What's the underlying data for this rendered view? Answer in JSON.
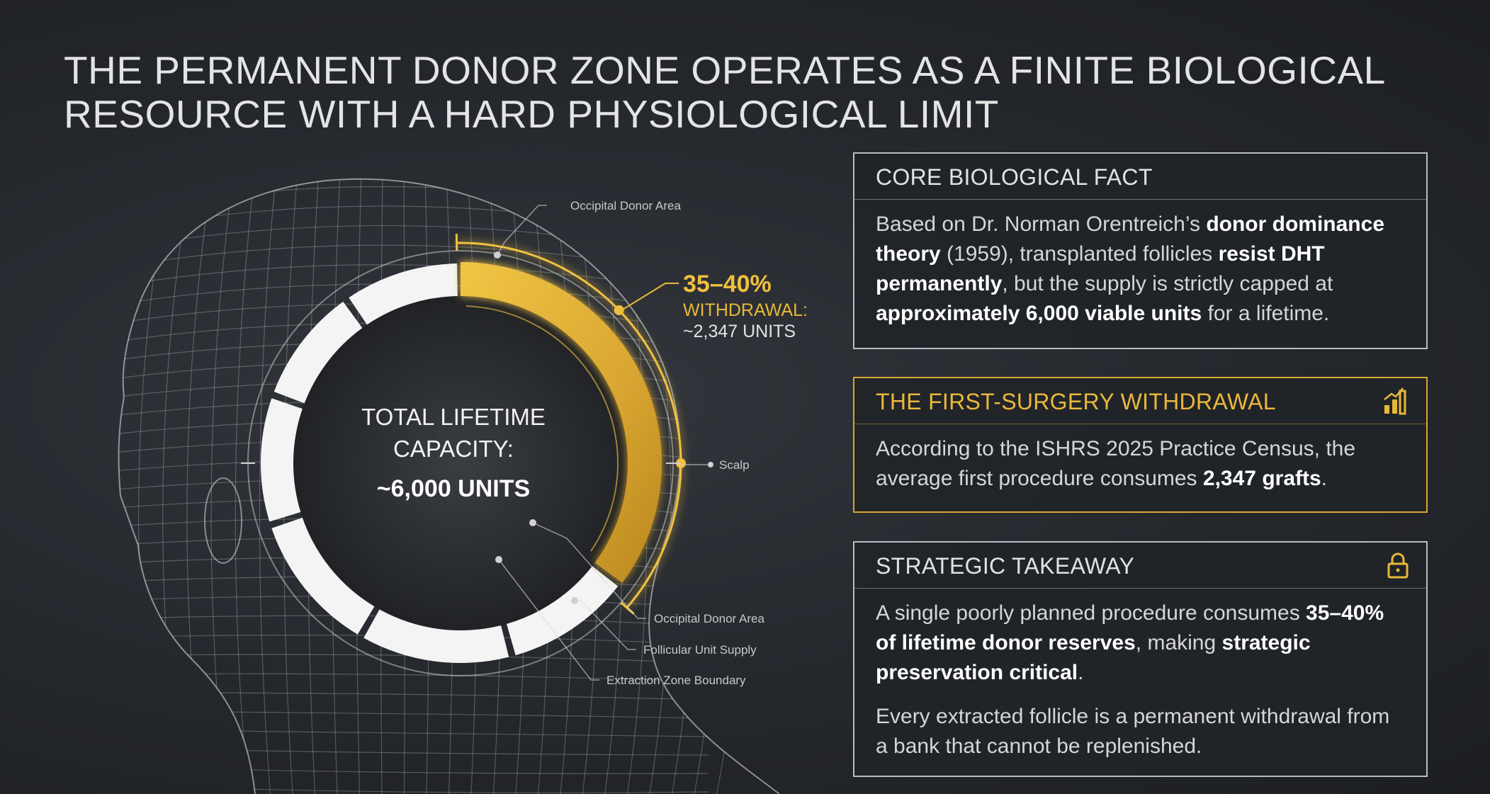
{
  "title": {
    "lines": [
      "THE PERMANENT DONOR ZONE OPERATES AS A FINITE BIOLOGICAL",
      "RESOURCE WITH A HARD PHYSIOLOGICAL LIMIT"
    ]
  },
  "diagram": {
    "center_lines": [
      "TOTAL LIFETIME",
      "CAPACITY:",
      "~6,000 UNITS"
    ],
    "callout": {
      "percent": "35–40%",
      "label": "WITHDRAWAL:",
      "units": "~2,347 UNITS"
    },
    "labels": [
      "Occipital Donor Area",
      "Scalp",
      "Occipital Donor Area",
      "Follicular Unit Supply",
      "Extraction Zone Boundary"
    ]
  },
  "cards": [
    {
      "heading": "CORE BIOLOGICAL FACT",
      "paragraphs": [
        [
          {
            "text": "Based on Dr. Norman Orentreich’s ",
            "bold": false
          },
          {
            "text": "donor dominance theory",
            "bold": true
          },
          {
            "text": " (1959), transplanted follicles ",
            "bold": false
          },
          {
            "text": "resist DHT permanently",
            "bold": true
          },
          {
            "text": ", but the supply is strictly capped at ",
            "bold": false
          },
          {
            "text": "approximately 6,000 viable units",
            "bold": true
          },
          {
            "text": " for a lifetime.",
            "bold": false
          }
        ]
      ]
    },
    {
      "heading": "THE FIRST-SURGERY WITHDRAWAL",
      "paragraphs": [
        [
          {
            "text": "According to the ISHRS 2025 Practice Census, the average first procedure consumes ",
            "bold": false
          },
          {
            "text": "2,347 grafts",
            "bold": true
          },
          {
            "text": ".",
            "bold": false
          }
        ]
      ]
    },
    {
      "heading": "STRATEGIC TAKEAWAY",
      "paragraphs": [
        [
          {
            "text": "A single poorly planned procedure consumes ",
            "bold": false
          },
          {
            "text": "35–40% of lifetime donor reserves",
            "bold": true
          },
          {
            "text": ", making ",
            "bold": false
          },
          {
            "text": "strategic preservation critical",
            "bold": true
          },
          {
            "text": ".",
            "bold": false
          }
        ],
        [
          {
            "text": "Every extracted follicle is a permanent withdrawal from a bank that cannot be replenished.",
            "bold": false
          }
        ]
      ]
    }
  ]
}
